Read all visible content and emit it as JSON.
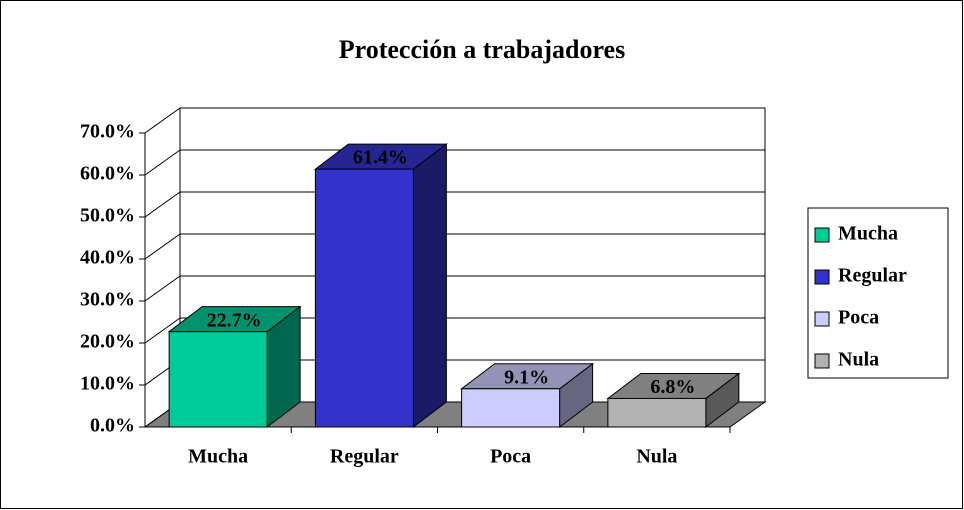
{
  "chart_data": {
    "type": "bar3d",
    "title": "Protección a trabajadores",
    "categories": [
      "Mucha",
      "Regular",
      "Poca",
      "Nula"
    ],
    "values": [
      22.7,
      61.4,
      9.1,
      6.8
    ],
    "value_labels": [
      "22.7%",
      "61.4%",
      "9.1%",
      "6.8%"
    ],
    "colors": [
      "#00cc99",
      "#3333cc",
      "#ccccff",
      "#b2b2b2"
    ],
    "ylim": [
      0,
      70
    ],
    "yticks": [
      {
        "value": 0,
        "label": "0.0%"
      },
      {
        "value": 10,
        "label": "10.0%"
      },
      {
        "value": 20,
        "label": "20.0%"
      },
      {
        "value": 30,
        "label": "30.0%"
      },
      {
        "value": 40,
        "label": "40.0%"
      },
      {
        "value": 50,
        "label": "50.0%"
      },
      {
        "value": 60,
        "label": "60.0%"
      },
      {
        "value": 70,
        "label": "70.0%"
      }
    ],
    "grid": true,
    "legend": "right"
  }
}
